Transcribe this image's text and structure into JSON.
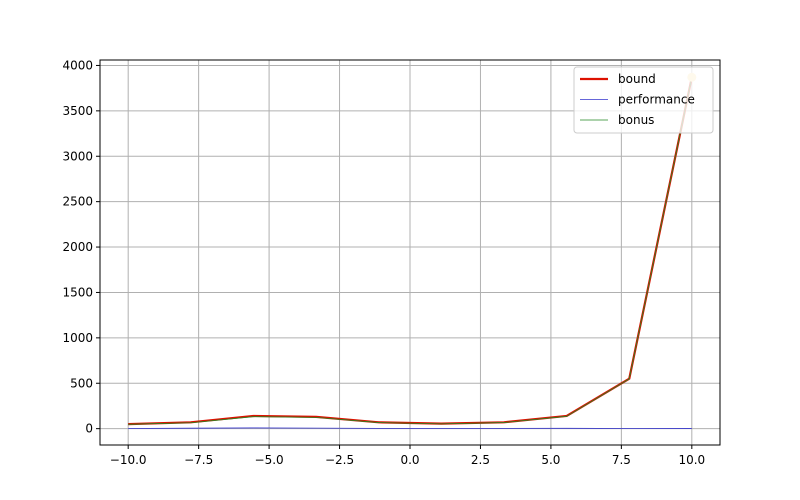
{
  "chart_data": {
    "type": "line",
    "title": "",
    "xlabel": "",
    "ylabel": "",
    "xlim": [
      -11.0,
      11.0
    ],
    "ylim": [
      -180,
      4060
    ],
    "grid": true,
    "legend_position": "top-right",
    "x_ticks": [
      -10.0,
      -7.5,
      -5.0,
      -2.5,
      0.0,
      2.5,
      5.0,
      7.5,
      10.0
    ],
    "x_tick_labels": [
      "−10.0",
      "−7.5",
      "−5.0",
      "−2.5",
      "0.0",
      "2.5",
      "5.0",
      "7.5",
      "10.0"
    ],
    "y_ticks": [
      0,
      500,
      1000,
      1500,
      2000,
      2500,
      3000,
      3500,
      4000
    ],
    "y_tick_labels": [
      "0",
      "500",
      "1000",
      "1500",
      "2000",
      "2500",
      "3000",
      "3500",
      "4000"
    ],
    "series": [
      {
        "name": "bound",
        "color": "#dd1100",
        "x": [
          -10.0,
          -7.78,
          -5.56,
          -3.33,
          -1.11,
          1.11,
          3.33,
          5.56,
          7.78,
          10.0
        ],
        "y": [
          50,
          70,
          140,
          130,
          70,
          55,
          70,
          140,
          550,
          3870
        ]
      },
      {
        "name": "performance",
        "color": "#3333cc",
        "x": [
          -10.0,
          -7.78,
          -5.56,
          -3.33,
          -1.11,
          1.11,
          3.33,
          5.56,
          7.78,
          10.0
        ],
        "y": [
          2,
          5,
          8,
          6,
          3,
          2,
          3,
          4,
          2,
          1
        ]
      },
      {
        "name": "bonus",
        "color": "#228822",
        "x": [
          -10.0,
          -7.78,
          -5.56,
          -3.33,
          -1.11,
          1.11,
          3.33,
          5.56,
          7.78,
          10.0
        ],
        "y": [
          48,
          65,
          132,
          124,
          67,
          53,
          67,
          136,
          548,
          3869
        ]
      }
    ],
    "marker": {
      "x": 10.0,
      "y": 3870,
      "color": "#f7dfa0"
    }
  }
}
